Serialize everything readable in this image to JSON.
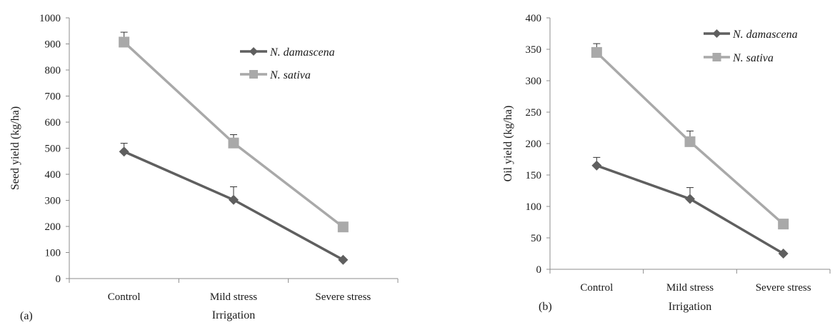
{
  "chart_data": [
    {
      "type": "line",
      "panel_label": "(a)",
      "xlabel": "Irrigation",
      "ylabel": "Seed yield (kg/ha)",
      "categories": [
        "Control",
        "Mild stress",
        "Severe stress"
      ],
      "ylim": [
        0,
        1000
      ],
      "yticks": [
        0,
        100,
        200,
        300,
        400,
        500,
        600,
        700,
        800,
        900,
        1000
      ],
      "grid": false,
      "legend": "top-right",
      "series": [
        {
          "name": "N. damascena",
          "marker": "diamond",
          "color": "#5f5f5f",
          "values": [
            487,
            302,
            72
          ],
          "error": [
            32,
            50,
            0
          ]
        },
        {
          "name": "N. sativa",
          "marker": "square",
          "color": "#a9a9a9",
          "values": [
            907,
            520,
            198
          ],
          "error": [
            38,
            32,
            0
          ]
        }
      ]
    },
    {
      "type": "line",
      "panel_label": "(b)",
      "xlabel": "Irrigation",
      "ylabel": "Oil yield (kg/ha)",
      "categories": [
        "Control",
        "Mild stress",
        "Severe stress"
      ],
      "ylim": [
        0,
        400
      ],
      "yticks": [
        0,
        50,
        100,
        150,
        200,
        250,
        300,
        350,
        400
      ],
      "grid": false,
      "legend": "top-right",
      "series": [
        {
          "name": "N. damascena",
          "marker": "diamond",
          "color": "#5f5f5f",
          "values": [
            165,
            112,
            25
          ],
          "error": [
            13,
            18,
            0
          ]
        },
        {
          "name": "N. sativa",
          "marker": "square",
          "color": "#a9a9a9",
          "values": [
            345,
            203,
            72
          ],
          "error": [
            14,
            17,
            0
          ]
        }
      ]
    }
  ]
}
